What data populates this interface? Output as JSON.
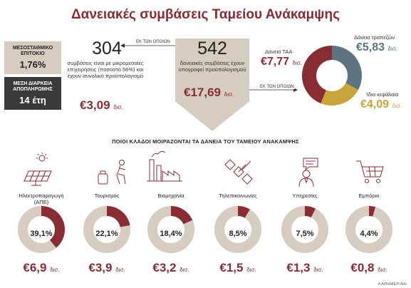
{
  "title": "Δανειακές συμβάσεις Ταμείου Ανάκαμψης",
  "left_boxes": [
    {
      "label": "ΜΕΣΟΣΤΑΘΜΙΚΟ ΕΠΙΤΟΚΙΟ",
      "value": "1,76%"
    },
    {
      "label": "ΜΕΣΗ ΔΙΑΡΚΕΙΑ ΑΠΟΠΛΗΡΩΜΗΣ",
      "value": "14 έτη"
    }
  ],
  "smes": {
    "number": "304",
    "text": "συμβάσεις είναι με μικρομεσαίες επιχειρήσεις (ποσοστό 56%) και έχουν συνολικό προϋπολογισμό",
    "amount": "€3,09",
    "amount_suffix": "δισ."
  },
  "arrow_left_label": "ΕΚ ΤΩΝ ΟΠΟΙΩΝ",
  "arrow_right_label": "ΕΚ ΤΩΝ ΟΠΟΙΩΝ",
  "total": {
    "number": "542",
    "text": "δανειακές συμβάσεις έχουν υπογραφεί προϋπολογισμού",
    "amount": "€17,69",
    "amount_suffix": "δισ."
  },
  "chart_data": {
    "type": "pie",
    "slices": [
      {
        "name": "Δάνεια ΤΑΑ",
        "display": "€7,77",
        "suffix": "δισ.",
        "value": 7.77,
        "color": "#8a2c33"
      },
      {
        "name": "Δάνεια τραπεζών",
        "display": "€5,83",
        "suffix": "δισ.",
        "value": 5.83,
        "color": "#5d7480"
      },
      {
        "name": "Ίδια κεφάλαια",
        "display": "€4,09",
        "suffix": "δισ.",
        "value": 4.09,
        "color": "#c9a43b"
      }
    ]
  },
  "sectors_title": "ΠΟΙΟΙ ΚΛΑΔΟΙ ΜΟΙΡΑΖΟΝΤΑΙ ΤΑ ΔΑΝΕΙΑ ΤΟΥ ΤΑΜΕΙΟΥ ΑΝΑΚΑΜΨΗΣ",
  "sectors": [
    {
      "name": "Ηλεκτροπαραγωγή (ΑΠΕ)",
      "percent": "39,1%",
      "share": 39.1,
      "amount": "€6,9",
      "suffix": "δισ.",
      "icon": "solar-panel-icon"
    },
    {
      "name": "Τουρισμός",
      "percent": "22,1%",
      "share": 22.1,
      "amount": "€3,9",
      "suffix": "δισ.",
      "icon": "traveler-icon"
    },
    {
      "name": "Βιομηχανία",
      "percent": "18,4%",
      "share": 18.4,
      "amount": "€3,2",
      "suffix": "δισ.",
      "icon": "factory-icon"
    },
    {
      "name": "Τηλεπικοινωνίες",
      "percent": "8,5%",
      "share": 8.5,
      "amount": "€1,5",
      "suffix": "δισ.",
      "icon": "satellite-icon"
    },
    {
      "name": "Υπηρεσίες",
      "percent": "7,5%",
      "share": 7.5,
      "amount": "€1,3",
      "suffix": "δισ.",
      "icon": "person-speech-icon"
    },
    {
      "name": "Εμπόριο",
      "percent": "4,4%",
      "share": 4.4,
      "amount": "€0,8",
      "suffix": "δισ.",
      "icon": "shopping-cart-icon"
    }
  ],
  "colors": {
    "accent": "#8a2c33",
    "track": "#d6cdc0"
  },
  "credit": "ΚΑΘΗΜΕΡΙΝΗ"
}
